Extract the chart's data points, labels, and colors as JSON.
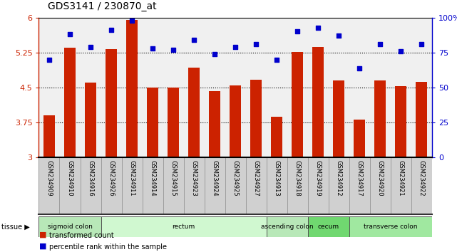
{
  "title": "GDS3141 / 230870_at",
  "samples": [
    "GSM234909",
    "GSM234910",
    "GSM234916",
    "GSM234926",
    "GSM234911",
    "GSM234914",
    "GSM234915",
    "GSM234923",
    "GSM234924",
    "GSM234925",
    "GSM234927",
    "GSM234913",
    "GSM234918",
    "GSM234919",
    "GSM234912",
    "GSM234917",
    "GSM234920",
    "GSM234921",
    "GSM234922"
  ],
  "bar_values": [
    3.9,
    5.35,
    4.6,
    5.32,
    5.95,
    4.5,
    4.5,
    4.93,
    4.43,
    4.55,
    4.67,
    3.87,
    5.27,
    5.37,
    4.65,
    3.81,
    4.65,
    4.53,
    4.63
  ],
  "dot_values": [
    70,
    88,
    79,
    91,
    98,
    78,
    77,
    84,
    74,
    79,
    81,
    70,
    90,
    93,
    87,
    64,
    81,
    76,
    81
  ],
  "ylim_left": [
    3,
    6
  ],
  "ylim_right": [
    0,
    100
  ],
  "yticks_left": [
    3,
    3.75,
    4.5,
    5.25,
    6
  ],
  "yticks_right": [
    0,
    25,
    50,
    75,
    100
  ],
  "ytick_labels_left": [
    "3",
    "3.75",
    "4.5",
    "5.25",
    "6"
  ],
  "ytick_labels_right": [
    "0",
    "25",
    "50",
    "75",
    "100%"
  ],
  "bar_color": "#cc2200",
  "dot_color": "#0000cc",
  "plot_bg_color": "#f0f0f0",
  "label_bg_color": "#d0d0d0",
  "tissue_groups": [
    {
      "label": "sigmoid colon",
      "start": 0,
      "end": 3,
      "color": "#b8e8b8"
    },
    {
      "label": "rectum",
      "start": 3,
      "end": 11,
      "color": "#d0f8d0"
    },
    {
      "label": "ascending colon",
      "start": 11,
      "end": 13,
      "color": "#b8e8b8"
    },
    {
      "label": "cecum",
      "start": 13,
      "end": 15,
      "color": "#70d870"
    },
    {
      "label": "transverse colon",
      "start": 15,
      "end": 19,
      "color": "#a0e8a0"
    }
  ],
  "legend_items": [
    {
      "label": "transformed count",
      "color": "#cc2200"
    },
    {
      "label": "percentile rank within the sample",
      "color": "#0000cc"
    }
  ]
}
